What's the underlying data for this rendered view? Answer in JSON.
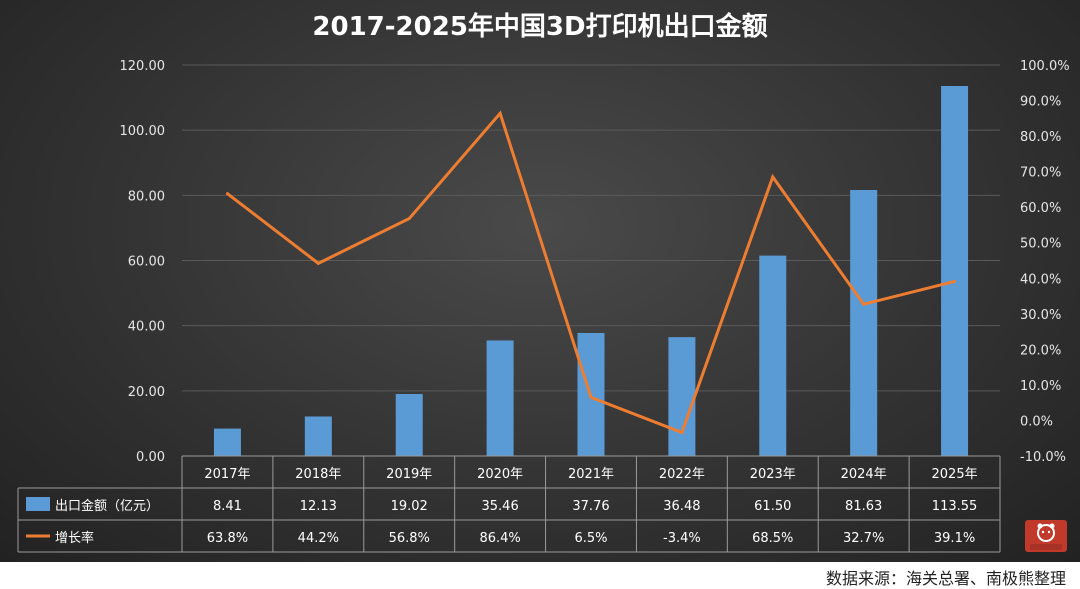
{
  "chart_data": {
    "type": "bar",
    "title": "2017-2025年中国3D打印机出口金额",
    "categories": [
      "2017年",
      "2018年",
      "2019年",
      "2020年",
      "2021年",
      "2022年",
      "2023年",
      "2024年",
      "2025年"
    ],
    "series": [
      {
        "name": "出口金额（亿元）",
        "type": "bar",
        "axis": "left",
        "color": "#5b9bd5",
        "values": [
          8.41,
          12.13,
          19.02,
          35.46,
          37.76,
          36.48,
          61.5,
          81.63,
          113.55
        ],
        "labels": [
          "8.41",
          "12.13",
          "19.02",
          "35.46",
          "37.76",
          "36.48",
          "61.50",
          "81.63",
          "113.55"
        ]
      },
      {
        "name": "增长率",
        "type": "line",
        "axis": "right",
        "color": "#ed7d31",
        "values": [
          63.8,
          44.2,
          56.8,
          86.4,
          6.5,
          -3.4,
          68.5,
          32.7,
          39.1
        ],
        "labels": [
          "63.8%",
          "44.2%",
          "56.8%",
          "86.4%",
          "6.5%",
          "-3.4%",
          "68.5%",
          "32.7%",
          "39.1%"
        ]
      }
    ],
    "y_left": {
      "range": [
        0,
        120
      ],
      "ticks": [
        0,
        20,
        40,
        60,
        80,
        100,
        120
      ],
      "tick_labels": [
        "0.00",
        "20.00",
        "40.00",
        "60.00",
        "80.00",
        "100.00",
        "120.00"
      ]
    },
    "y_right": {
      "range": [
        -10,
        100
      ],
      "ticks": [
        -10,
        0,
        10,
        20,
        30,
        40,
        50,
        60,
        70,
        80,
        90,
        100
      ],
      "tick_labels": [
        "-10.0%",
        "0.0%",
        "10.0%",
        "20.0%",
        "30.0%",
        "40.0%",
        "50.0%",
        "60.0%",
        "70.0%",
        "80.0%",
        "90.0%",
        "100.0%"
      ]
    },
    "grid": true,
    "legend": "data-table-left",
    "data_table": true
  },
  "source": "数据来源：海关总署、南极熊整理",
  "logo": {
    "text": "南极熊"
  },
  "colors": {
    "background": "#333333",
    "bar": "#5b9bd5",
    "line": "#ed7d31",
    "grid": "#5a5a5a",
    "text": "#e6e6e6"
  }
}
